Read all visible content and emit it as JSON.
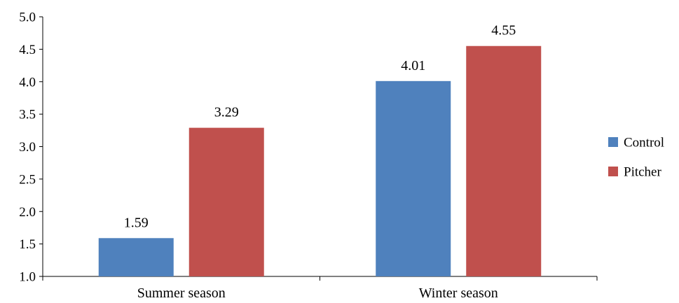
{
  "chart_data": {
    "type": "bar",
    "title": "",
    "xlabel": "",
    "ylabel": "",
    "categories": [
      "Summer season",
      "Winter season"
    ],
    "series": [
      {
        "name": "Control",
        "color": "#4F81BD",
        "values": [
          1.59,
          4.01
        ]
      },
      {
        "name": "Pitcher",
        "color": "#C0504D",
        "values": [
          3.29,
          4.55
        ]
      }
    ],
    "ylim": [
      1.0,
      5.0
    ],
    "yticks": [
      "1.0",
      "1.5",
      "2.0",
      "2.5",
      "3.0",
      "3.5",
      "4.0",
      "4.5",
      "5.0"
    ],
    "grid": false,
    "legend_position": "right"
  }
}
